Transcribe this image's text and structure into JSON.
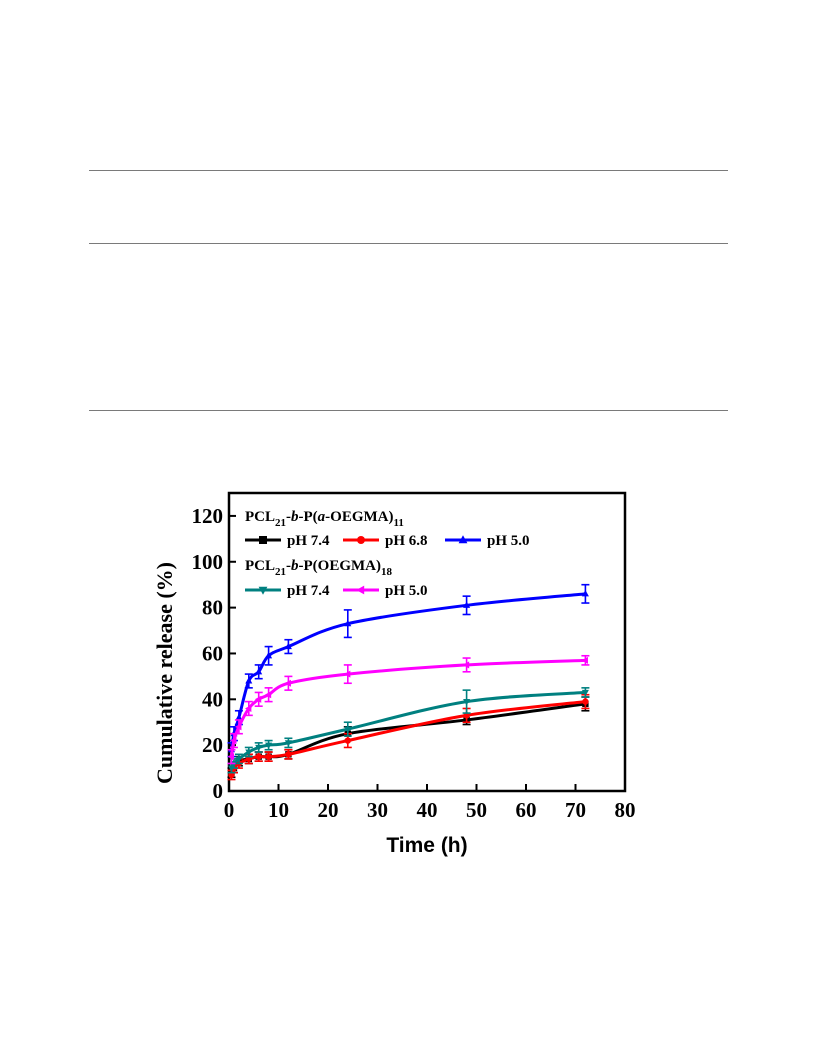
{
  "chart_data": {
    "type": "line",
    "title": "",
    "xlabel": "Time (h)",
    "ylabel": "Cumulative release (%)",
    "xlim": [
      0,
      80
    ],
    "ylim": [
      0,
      130
    ],
    "xticks": [
      0,
      10,
      20,
      30,
      40,
      50,
      60,
      70,
      80
    ],
    "yticks": [
      0,
      20,
      40,
      60,
      80,
      100,
      120
    ],
    "grid": false,
    "legend_position": "top-left",
    "legend_groups": [
      {
        "title_main": "PCL",
        "title_sub1": "21",
        "title_mid": "-b-P(a-OEGMA)",
        "title_sub2": "11"
      },
      {
        "title_main": "PCL",
        "title_sub1": "21",
        "title_mid": "-b-P(OEGMA)",
        "title_sub2": "18"
      }
    ],
    "x": [
      0.5,
      1,
      2,
      4,
      6,
      8,
      12,
      24,
      48,
      72
    ],
    "series": [
      {
        "name": "pH 7.4",
        "group": 0,
        "marker": "square",
        "color": "#000000",
        "values": [
          8,
          10,
          13,
          14,
          15,
          15,
          16,
          25,
          31,
          38
        ],
        "errors": [
          2,
          2,
          2,
          2,
          2,
          2,
          2,
          3,
          2,
          3
        ]
      },
      {
        "name": "pH 6.8",
        "group": 0,
        "marker": "circle",
        "color": "#ff0000",
        "values": [
          7,
          10,
          12,
          14,
          15,
          15,
          16,
          22,
          33,
          39
        ],
        "errors": [
          2,
          2,
          2,
          2,
          2,
          2,
          2,
          3,
          3,
          3
        ]
      },
      {
        "name": "pH 5.0",
        "group": 0,
        "marker": "triangle-up",
        "color": "#0000ff",
        "values": [
          18,
          25,
          32,
          48,
          52,
          59,
          63,
          73,
          81,
          86
        ],
        "errors": [
          3,
          3,
          3,
          3,
          3,
          4,
          3,
          6,
          4,
          4
        ]
      },
      {
        "name": "pH 7.4",
        "group": 1,
        "marker": "triangle-down",
        "color": "#008080",
        "values": [
          10,
          12,
          14,
          17,
          19,
          20,
          21,
          27,
          39,
          43
        ],
        "errors": [
          2,
          2,
          2,
          2,
          2,
          2,
          2,
          3,
          5,
          2
        ]
      },
      {
        "name": "pH 5.0",
        "group": 1,
        "marker": "triangle-left",
        "color": "#ff00ff",
        "values": [
          15,
          22,
          28,
          36,
          40,
          42,
          47,
          51,
          55,
          57
        ],
        "errors": [
          3,
          3,
          3,
          3,
          3,
          3,
          3,
          4,
          3,
          2
        ]
      }
    ]
  }
}
